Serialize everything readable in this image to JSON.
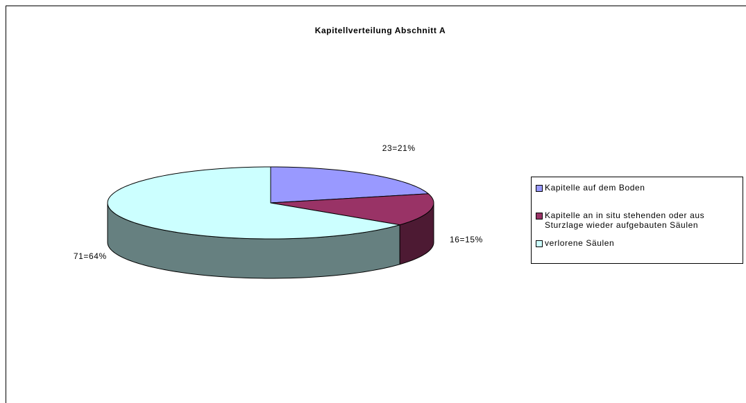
{
  "chart_data": {
    "type": "pie",
    "title": "Kapitellverteilung Abschnitt A",
    "categories": [
      "Kapitelle auf dem Boden",
      "Kapitelle an in situ stehenden oder aus Sturzlage wieder aufgebauten Säulen",
      "verlorene Säulen"
    ],
    "values": [
      23,
      16,
      71
    ],
    "value_labels": [
      "23=21%",
      "16=15%",
      "71=64%"
    ],
    "colors": [
      "#9999ff",
      "#993366",
      "#ccffff"
    ],
    "legend": "right"
  }
}
